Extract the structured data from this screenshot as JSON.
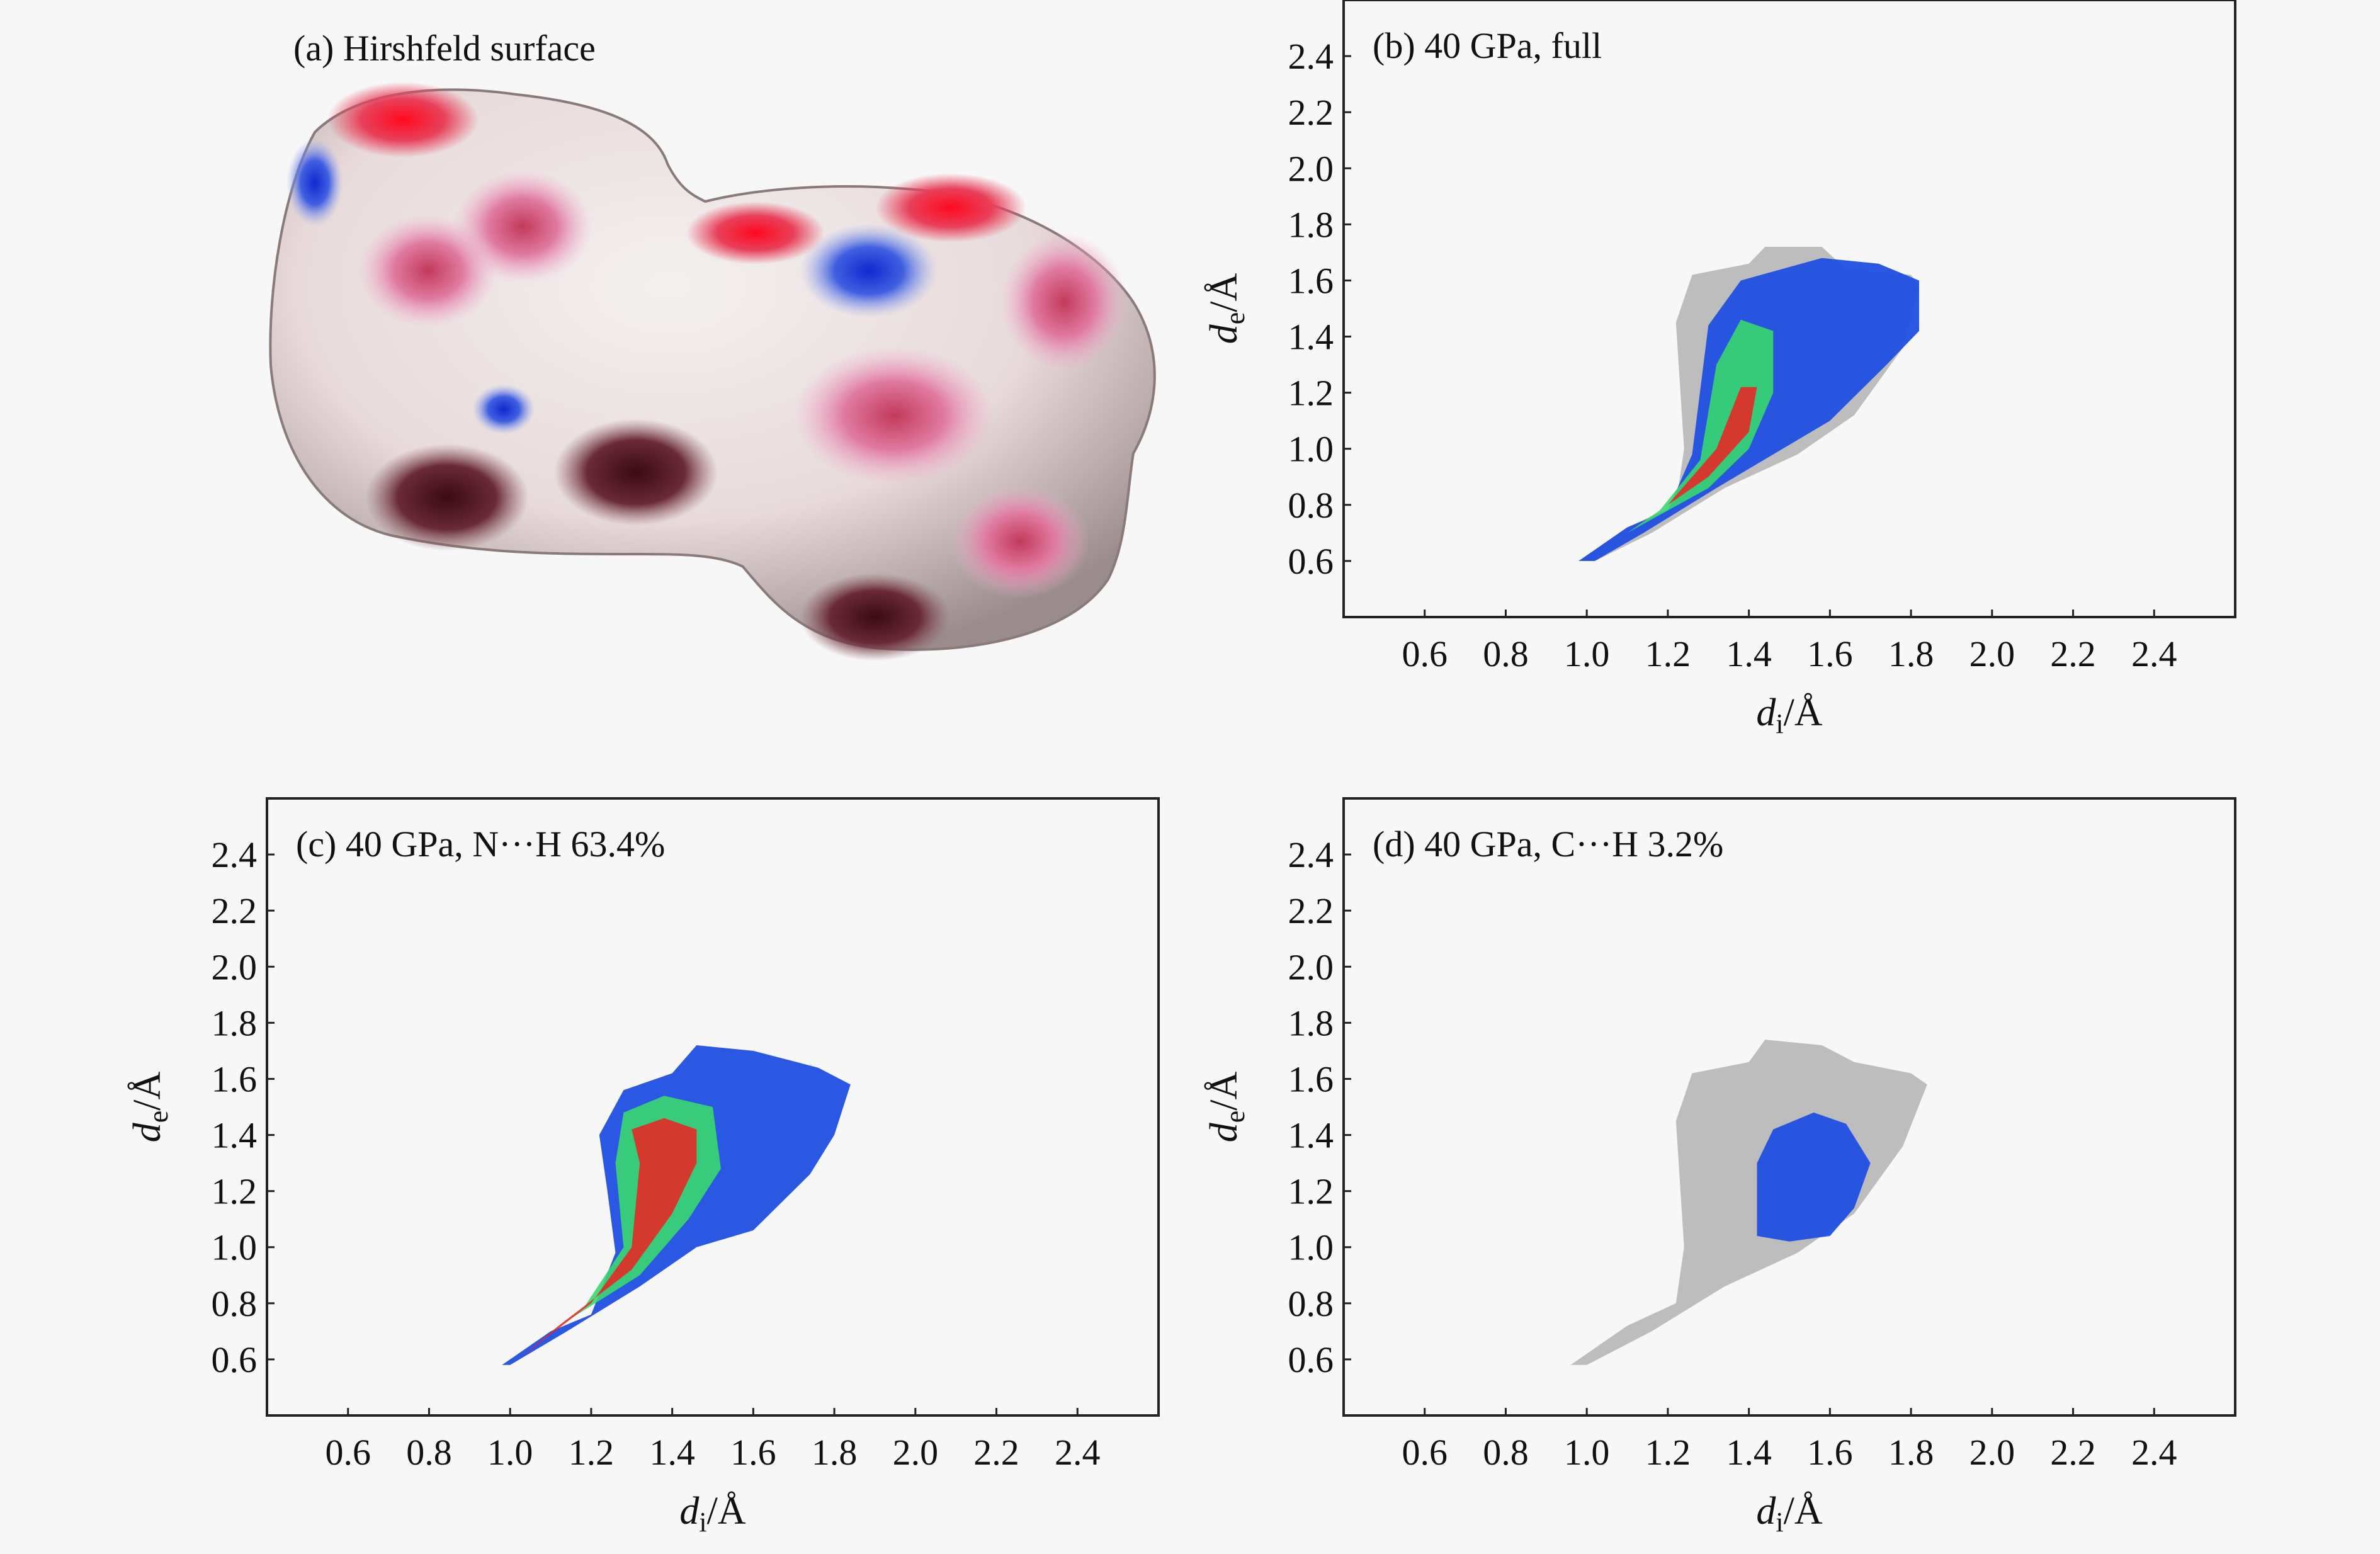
{
  "figure": {
    "panel_a_title": "(a) Hirshfeld surface"
  },
  "chart_data": [
    {
      "type": "scatter",
      "panel": "b",
      "title": "(b) 40 GPa, full",
      "xlabel": "d_i/Å",
      "ylabel": "d_e/Å",
      "xlim": [
        0.4,
        2.6
      ],
      "ylim": [
        0.4,
        2.6
      ],
      "xticks": [
        "0.6",
        "0.8",
        "1.0",
        "1.2",
        "1.4",
        "1.6",
        "1.8",
        "2.0",
        "2.2",
        "2.4"
      ],
      "yticks": [
        "0.6",
        "0.8",
        "1.0",
        "1.2",
        "1.4",
        "1.6",
        "1.8",
        "2.0",
        "2.2",
        "2.4"
      ],
      "grey_region": [
        [
          0.98,
          0.6
        ],
        [
          1.1,
          0.72
        ],
        [
          1.22,
          0.8
        ],
        [
          1.24,
          1.0
        ],
        [
          1.22,
          1.45
        ],
        [
          1.26,
          1.62
        ],
        [
          1.4,
          1.66
        ],
        [
          1.44,
          1.72
        ],
        [
          1.58,
          1.72
        ],
        [
          1.64,
          1.64
        ],
        [
          1.8,
          1.62
        ],
        [
          1.82,
          1.58
        ],
        [
          1.78,
          1.36
        ],
        [
          1.66,
          1.12
        ],
        [
          1.52,
          0.98
        ],
        [
          1.34,
          0.86
        ],
        [
          1.16,
          0.7
        ],
        [
          1.02,
          0.6
        ]
      ],
      "blue_region": [
        [
          0.98,
          0.6
        ],
        [
          1.1,
          0.72
        ],
        [
          1.2,
          0.78
        ],
        [
          1.26,
          0.98
        ],
        [
          1.3,
          1.44
        ],
        [
          1.38,
          1.6
        ],
        [
          1.48,
          1.64
        ],
        [
          1.58,
          1.68
        ],
        [
          1.72,
          1.66
        ],
        [
          1.82,
          1.6
        ],
        [
          1.82,
          1.42
        ],
        [
          1.74,
          1.3
        ],
        [
          1.6,
          1.1
        ],
        [
          1.46,
          0.98
        ],
        [
          1.32,
          0.86
        ],
        [
          1.14,
          0.7
        ],
        [
          1.02,
          0.6
        ]
      ],
      "green_region": [
        [
          1.0,
          0.6
        ],
        [
          1.18,
          0.78
        ],
        [
          1.28,
          0.96
        ],
        [
          1.32,
          1.3
        ],
        [
          1.38,
          1.46
        ],
        [
          1.46,
          1.42
        ],
        [
          1.46,
          1.2
        ],
        [
          1.4,
          1.0
        ],
        [
          1.3,
          0.86
        ],
        [
          1.1,
          0.7
        ],
        [
          1.0,
          0.6
        ]
      ],
      "red_region": [
        [
          1.02,
          0.62
        ],
        [
          1.2,
          0.8
        ],
        [
          1.32,
          1.0
        ],
        [
          1.38,
          1.22
        ],
        [
          1.42,
          1.22
        ],
        [
          1.4,
          1.06
        ],
        [
          1.3,
          0.9
        ],
        [
          1.12,
          0.72
        ],
        [
          1.02,
          0.62
        ]
      ]
    },
    {
      "type": "scatter",
      "panel": "c",
      "title": "(c) 40 GPa, N···H 63.4%",
      "xlabel": "d_i/Å",
      "ylabel": "d_e/Å",
      "xlim": [
        0.4,
        2.6
      ],
      "ylim": [
        0.4,
        2.6
      ],
      "xticks": [
        "0.6",
        "0.8",
        "1.0",
        "1.2",
        "1.4",
        "1.6",
        "1.8",
        "2.0",
        "2.2",
        "2.4"
      ],
      "yticks": [
        "0.6",
        "0.8",
        "1.0",
        "1.2",
        "1.4",
        "1.6",
        "1.8",
        "2.0",
        "2.2",
        "2.4"
      ],
      "blue_region": [
        [
          0.98,
          0.58
        ],
        [
          1.1,
          0.7
        ],
        [
          1.2,
          0.76
        ],
        [
          1.26,
          0.98
        ],
        [
          1.24,
          1.2
        ],
        [
          1.22,
          1.4
        ],
        [
          1.28,
          1.56
        ],
        [
          1.4,
          1.62
        ],
        [
          1.46,
          1.72
        ],
        [
          1.6,
          1.7
        ],
        [
          1.76,
          1.64
        ],
        [
          1.84,
          1.58
        ],
        [
          1.8,
          1.4
        ],
        [
          1.74,
          1.26
        ],
        [
          1.6,
          1.06
        ],
        [
          1.46,
          1.0
        ],
        [
          1.32,
          0.86
        ],
        [
          1.14,
          0.7
        ],
        [
          1.0,
          0.58
        ]
      ],
      "green_region": [
        [
          1.0,
          0.6
        ],
        [
          1.18,
          0.78
        ],
        [
          1.28,
          1.0
        ],
        [
          1.26,
          1.3
        ],
        [
          1.28,
          1.48
        ],
        [
          1.38,
          1.54
        ],
        [
          1.5,
          1.5
        ],
        [
          1.52,
          1.28
        ],
        [
          1.44,
          1.1
        ],
        [
          1.32,
          0.9
        ],
        [
          1.1,
          0.7
        ],
        [
          1.0,
          0.6
        ]
      ],
      "red_region": [
        [
          1.02,
          0.6
        ],
        [
          1.2,
          0.8
        ],
        [
          1.3,
          1.0
        ],
        [
          1.32,
          1.3
        ],
        [
          1.3,
          1.42
        ],
        [
          1.38,
          1.46
        ],
        [
          1.46,
          1.42
        ],
        [
          1.46,
          1.3
        ],
        [
          1.4,
          1.12
        ],
        [
          1.3,
          0.92
        ],
        [
          1.12,
          0.72
        ],
        [
          1.02,
          0.6
        ]
      ]
    },
    {
      "type": "scatter",
      "panel": "d",
      "title": "(d) 40 GPa, C···H 3.2%",
      "xlabel": "d_i/Å",
      "ylabel": "d_e/Å",
      "xlim": [
        0.4,
        2.6
      ],
      "ylim": [
        0.4,
        2.6
      ],
      "xticks": [
        "0.6",
        "0.8",
        "1.0",
        "1.2",
        "1.4",
        "1.6",
        "1.8",
        "2.0",
        "2.2",
        "2.4"
      ],
      "yticks": [
        "0.6",
        "0.8",
        "1.0",
        "1.2",
        "1.4",
        "1.6",
        "1.8",
        "2.0",
        "2.2",
        "2.4"
      ],
      "grey_region": [
        [
          0.96,
          0.58
        ],
        [
          1.1,
          0.72
        ],
        [
          1.22,
          0.8
        ],
        [
          1.24,
          1.0
        ],
        [
          1.22,
          1.45
        ],
        [
          1.26,
          1.62
        ],
        [
          1.4,
          1.66
        ],
        [
          1.44,
          1.74
        ],
        [
          1.58,
          1.72
        ],
        [
          1.66,
          1.66
        ],
        [
          1.8,
          1.62
        ],
        [
          1.84,
          1.58
        ],
        [
          1.78,
          1.36
        ],
        [
          1.66,
          1.12
        ],
        [
          1.52,
          0.98
        ],
        [
          1.34,
          0.86
        ],
        [
          1.16,
          0.7
        ],
        [
          1.0,
          0.58
        ]
      ],
      "blue_region": [
        [
          1.42,
          1.04
        ],
        [
          1.42,
          1.3
        ],
        [
          1.46,
          1.42
        ],
        [
          1.56,
          1.48
        ],
        [
          1.64,
          1.44
        ],
        [
          1.7,
          1.3
        ],
        [
          1.66,
          1.14
        ],
        [
          1.6,
          1.04
        ],
        [
          1.5,
          1.02
        ]
      ]
    }
  ]
}
